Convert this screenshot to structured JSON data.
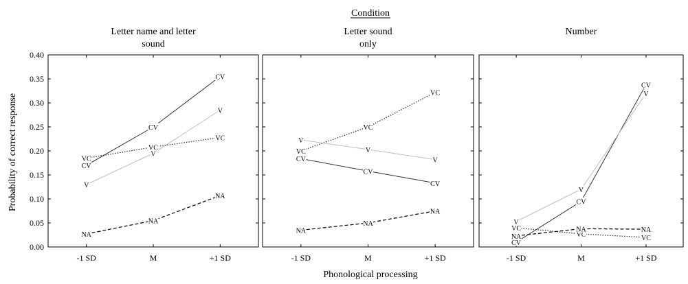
{
  "figure": {
    "condition_label": "Condition",
    "ylabel": "Probability of correct response",
    "xlabel": "Phonological processing"
  },
  "chart_data": [
    {
      "type": "line",
      "title": "Letter name and letter sound",
      "title_lines": [
        "Letter name and letter",
        "sound"
      ],
      "categories": [
        "-1 SD",
        "M",
        "+1 SD"
      ],
      "ylim": [
        0,
        0.4
      ],
      "yticks": [
        "0.00",
        "0.05",
        "0.10",
        "0.15",
        "0.20",
        "0.25",
        "0.30",
        "0.35",
        "0.40"
      ],
      "series": [
        {
          "name": "CV",
          "values": [
            0.17,
            0.25,
            0.355
          ],
          "style": "solid",
          "color": "#333333"
        },
        {
          "name": "V",
          "values": [
            0.13,
            0.195,
            0.285
          ],
          "style": "light",
          "color": "#bdbdbd"
        },
        {
          "name": "VC",
          "values": [
            0.185,
            0.208,
            0.228
          ],
          "style": "dotted",
          "color": "#333333"
        },
        {
          "name": "NA",
          "values": [
            0.027,
            0.055,
            0.107
          ],
          "style": "dashed",
          "color": "#111111"
        }
      ]
    },
    {
      "type": "line",
      "title": "Letter sound only",
      "title_lines": [
        "Letter sound",
        "only"
      ],
      "categories": [
        "-1 SD",
        "M",
        "+1 SD"
      ],
      "ylim": [
        0,
        0.4
      ],
      "series": [
        {
          "name": "VC",
          "values": [
            0.2,
            0.25,
            0.322
          ],
          "style": "dotted",
          "color": "#333333"
        },
        {
          "name": "V",
          "values": [
            0.223,
            0.203,
            0.182
          ],
          "style": "light",
          "color": "#bdbdbd"
        },
        {
          "name": "CV",
          "values": [
            0.184,
            0.158,
            0.133
          ],
          "style": "solid",
          "color": "#333333"
        },
        {
          "name": "NA",
          "values": [
            0.035,
            0.05,
            0.075
          ],
          "style": "dashed",
          "color": "#111111"
        }
      ]
    },
    {
      "type": "line",
      "title": "Number",
      "title_lines": [
        "Number"
      ],
      "categories": [
        "-1 SD",
        "M",
        "+1 SD"
      ],
      "ylim": [
        0,
        0.4
      ],
      "series": [
        {
          "name": "CV",
          "values": [
            0.01,
            0.095,
            0.338
          ],
          "style": "solid",
          "color": "#333333"
        },
        {
          "name": "V",
          "values": [
            0.053,
            0.12,
            0.32
          ],
          "style": "light",
          "color": "#bdbdbd"
        },
        {
          "name": "VC",
          "values": [
            0.04,
            0.027,
            0.02
          ],
          "style": "dotted",
          "color": "#333333"
        },
        {
          "name": "NA",
          "values": [
            0.023,
            0.038,
            0.037
          ],
          "style": "dashed",
          "color": "#111111"
        }
      ]
    }
  ]
}
